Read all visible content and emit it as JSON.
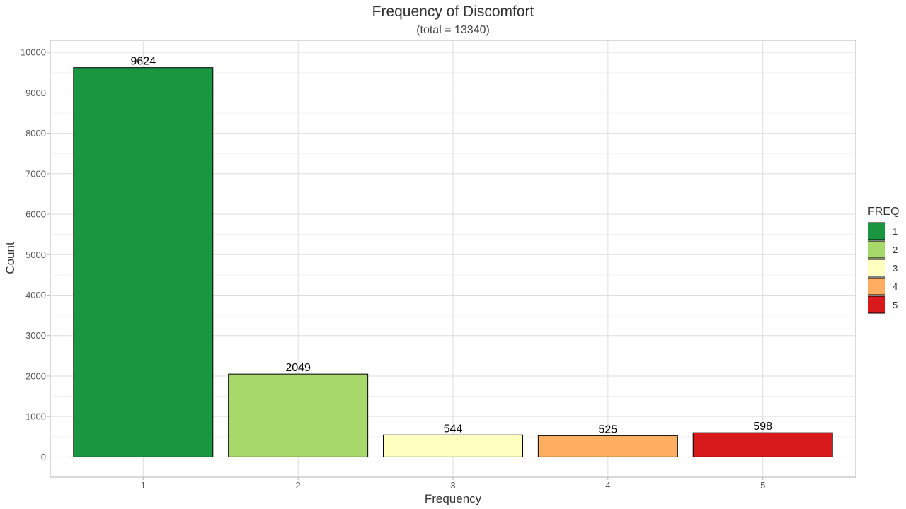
{
  "chart_data": {
    "type": "bar",
    "title": "Frequency of Discomfort",
    "subtitle": "(total = 13340)",
    "xlabel": "Frequency",
    "ylabel": "Count",
    "categories": [
      "1",
      "2",
      "3",
      "4",
      "5"
    ],
    "values": [
      9624,
      2049,
      544,
      525,
      598
    ],
    "data_labels": [
      "9624",
      "2049",
      "544",
      "525",
      "598"
    ],
    "colors": [
      "#1a9641",
      "#a6d96a",
      "#ffffc0",
      "#fdae61",
      "#d7191c"
    ],
    "ylim": [
      -500,
      10300
    ],
    "yticks": [
      0,
      1000,
      2000,
      3000,
      4000,
      5000,
      6000,
      7000,
      8000,
      9000,
      10000
    ],
    "ytick_labels": [
      "0",
      "1000",
      "2000",
      "3000",
      "4000",
      "5000",
      "6000",
      "7000",
      "8000",
      "9000",
      "10000"
    ],
    "grid": true,
    "legend": {
      "title": "FREQ",
      "placement": "right",
      "items": [
        "1",
        "2",
        "3",
        "4",
        "5"
      ]
    }
  }
}
